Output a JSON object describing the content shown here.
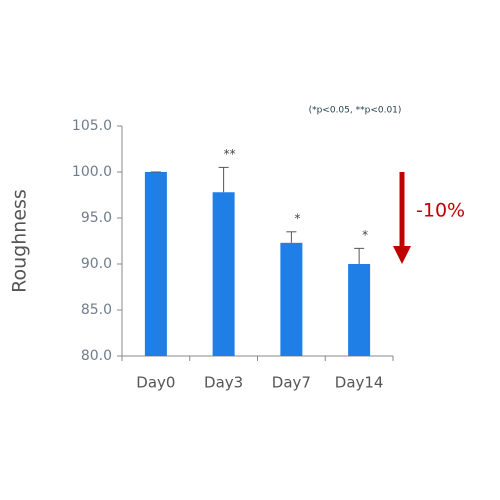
{
  "chart_data": {
    "type": "bar",
    "note": "(*p<0.05, **p<0.01)",
    "y_label": "Roughness",
    "categories": [
      "Day0",
      "Day3",
      "Day7",
      "Day14"
    ],
    "values": [
      100.0,
      97.8,
      92.3,
      90.0
    ],
    "errors": [
      0,
      2.7,
      1.2,
      1.7
    ],
    "significance": [
      null,
      "**",
      "*",
      "*"
    ],
    "color": "#1f7fe6",
    "ylim": [
      80,
      105
    ],
    "yticks": [
      {
        "value": 80,
        "label": "80.0"
      },
      {
        "value": 85,
        "label": "85.0"
      },
      {
        "value": 90,
        "label": "90.0"
      },
      {
        "value": 95,
        "label": "95.0"
      },
      {
        "value": 100,
        "label": "100.0"
      },
      {
        "value": 105,
        "label": "105.0"
      }
    ],
    "annotation": {
      "text": "-10%",
      "color": "#c00000"
    }
  }
}
